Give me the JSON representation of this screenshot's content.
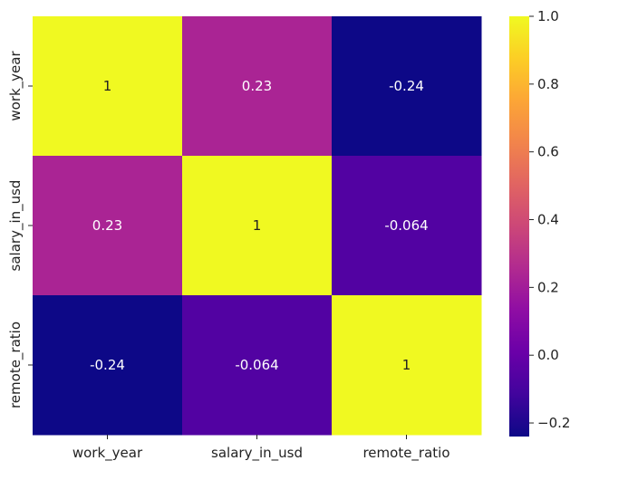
{
  "chart_data": {
    "type": "heatmap",
    "title": "",
    "xlabel": "",
    "ylabel": "",
    "x_categories": [
      "work_year",
      "salary_in_usd",
      "remote_ratio"
    ],
    "y_categories": [
      "work_year",
      "salary_in_usd",
      "remote_ratio"
    ],
    "values": [
      [
        1,
        0.23,
        -0.24
      ],
      [
        0.23,
        1,
        -0.064
      ],
      [
        -0.24,
        -0.064,
        1
      ]
    ],
    "cell_labels": [
      [
        "1",
        "0.23",
        "-0.24"
      ],
      [
        "0.23",
        "1",
        "-0.064"
      ],
      [
        "-0.24",
        "-0.064",
        "1"
      ]
    ],
    "colormap": "plasma",
    "colorbar": {
      "vmin": -0.24,
      "vmax": 1.0,
      "ticks": [
        -0.2,
        0.0,
        0.2,
        0.4,
        0.6,
        0.8,
        1.0
      ],
      "tick_labels": [
        "−0.2",
        "0.0",
        "0.2",
        "0.4",
        "0.6",
        "0.8",
        "1.0"
      ]
    },
    "annotation_colors": {
      "light_cells": "#222222",
      "dark_cells": "#ffffff"
    },
    "grid": false
  }
}
